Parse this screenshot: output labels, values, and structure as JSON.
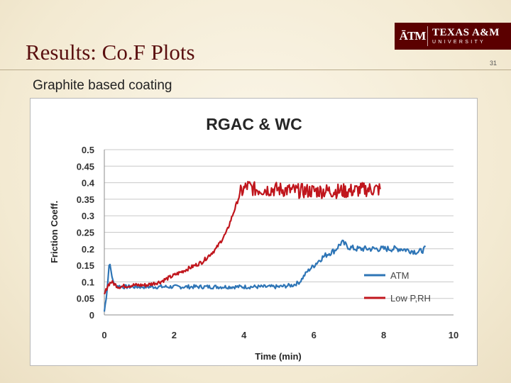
{
  "slide": {
    "title": "Results: Co.F Plots",
    "subtitle": "Graphite based coating",
    "page_number": "31",
    "logo": {
      "mark": "ĀTM",
      "name": "TEXAS A&M",
      "sub": "UNIVERSITY"
    }
  },
  "colors": {
    "atm": "#2e75b6",
    "lowp": "#c0161d",
    "brand": "#5b0000"
  },
  "chart_data": {
    "type": "line",
    "title": "RGAC & WC",
    "xlabel": "Time (min)",
    "ylabel": "Friction Coeff.",
    "xlim": [
      0,
      10
    ],
    "ylim": [
      0,
      0.5
    ],
    "x_ticks": [
      "0",
      "2",
      "4",
      "6",
      "8",
      "10"
    ],
    "y_ticks": [
      "0",
      "0.05",
      "0.1",
      "0.15",
      "0.2",
      "0.25",
      "0.3",
      "0.35",
      "0.4",
      "0.45",
      "0.5"
    ],
    "grid": "horizontal",
    "legend_position": "bottom-right",
    "series": [
      {
        "name": "ATM",
        "color": "#2e75b6",
        "x": [
          0,
          0.05,
          0.1,
          0.15,
          0.2,
          0.3,
          0.5,
          1.0,
          1.5,
          2.0,
          2.5,
          3.0,
          3.5,
          4.0,
          4.5,
          5.0,
          5.4,
          5.6,
          5.8,
          6.0,
          6.2,
          6.4,
          6.6,
          6.8,
          7.0,
          7.2,
          7.5,
          8.0,
          8.5,
          9.0,
          9.2
        ],
        "y": [
          0.01,
          0.05,
          0.1,
          0.17,
          0.12,
          0.09,
          0.085,
          0.085,
          0.085,
          0.085,
          0.085,
          0.085,
          0.085,
          0.085,
          0.085,
          0.085,
          0.09,
          0.1,
          0.13,
          0.15,
          0.17,
          0.185,
          0.195,
          0.22,
          0.205,
          0.2,
          0.2,
          0.2,
          0.2,
          0.19,
          0.2
        ]
      },
      {
        "name": "Low P,RH",
        "color": "#c0161d",
        "x": [
          0,
          0.1,
          0.2,
          0.4,
          0.8,
          1.2,
          1.6,
          2.0,
          2.4,
          2.8,
          3.2,
          3.5,
          3.7,
          3.9,
          4.1,
          4.3,
          4.6,
          5.0,
          5.5,
          6.0,
          6.5,
          7.0,
          7.5,
          7.9
        ],
        "y": [
          0.06,
          0.09,
          0.1,
          0.085,
          0.09,
          0.09,
          0.1,
          0.12,
          0.14,
          0.16,
          0.2,
          0.25,
          0.31,
          0.37,
          0.39,
          0.38,
          0.38,
          0.38,
          0.375,
          0.375,
          0.375,
          0.375,
          0.38,
          0.38
        ]
      }
    ]
  }
}
